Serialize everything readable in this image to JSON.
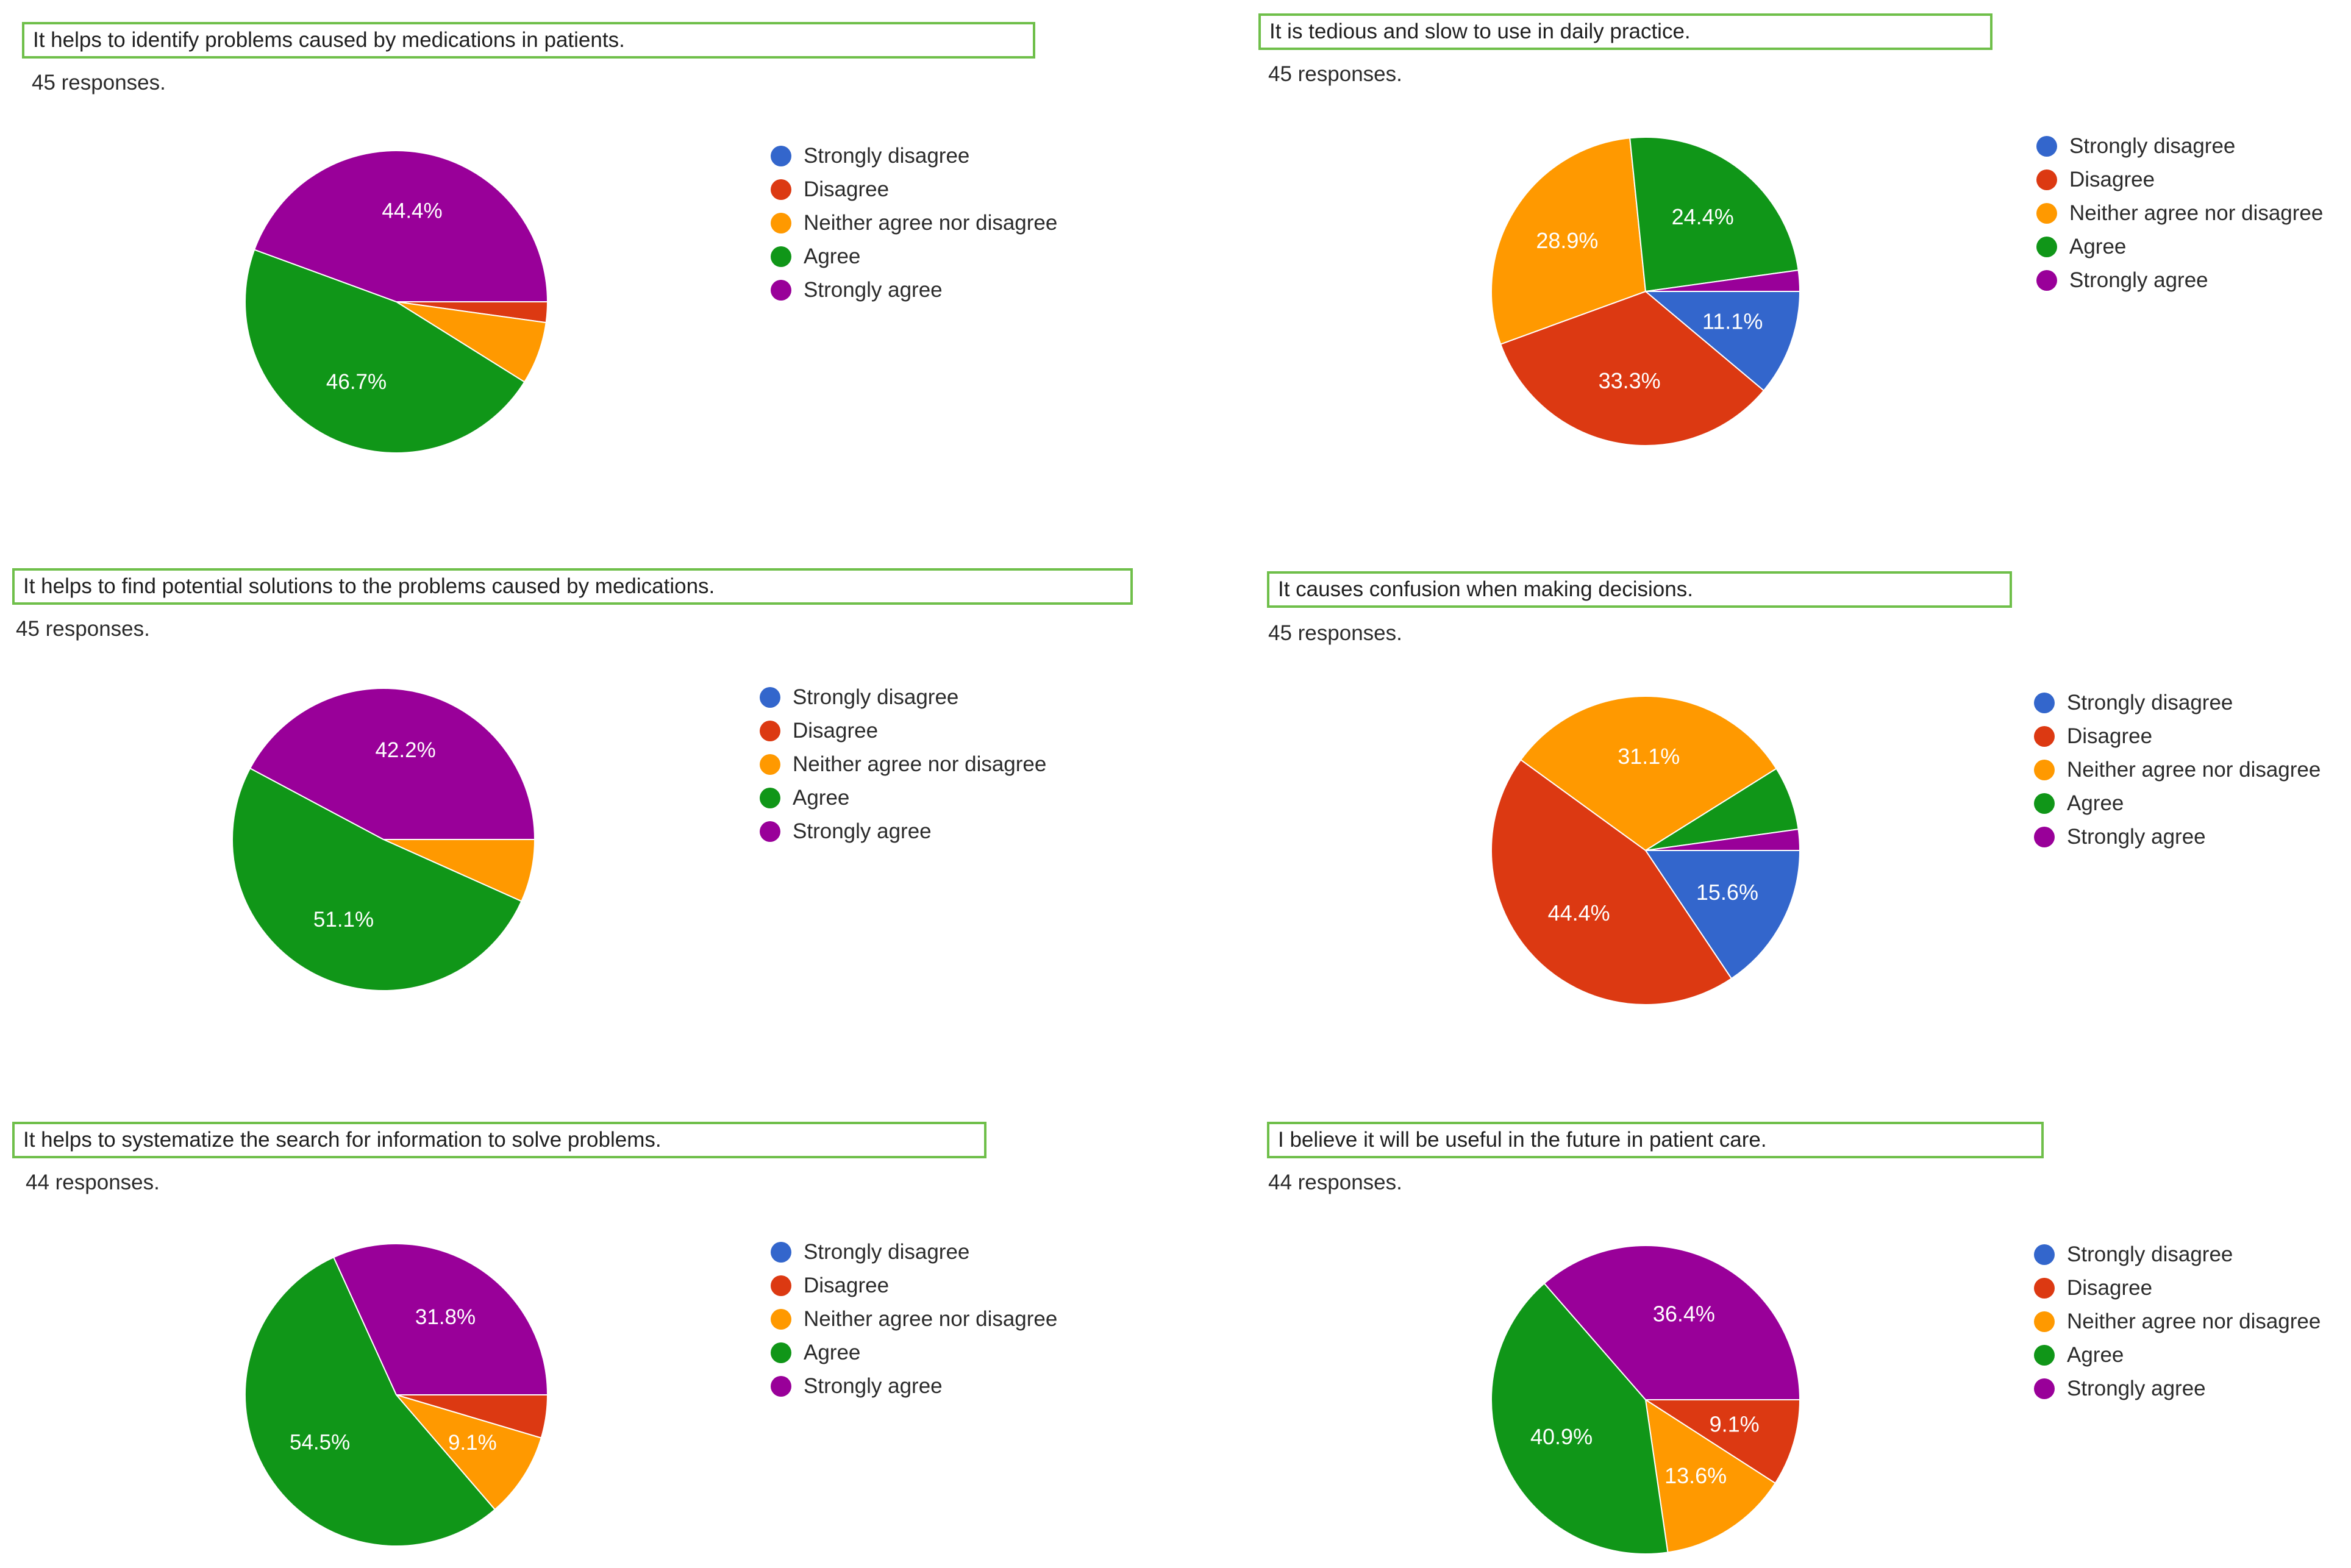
{
  "legend_labels": [
    "Strongly disagree",
    "Disagree",
    "Neither agree nor disagree",
    "Agree",
    "Strongly agree"
  ],
  "colors": [
    "#3366cc",
    "#dc3912",
    "#ff9900",
    "#109618",
    "#990099"
  ],
  "chart_data": [
    {
      "type": "pie",
      "title": "It helps to identify problems caused by medications in patients.",
      "responses": "45 responses.",
      "categories": [
        "Strongly disagree",
        "Disagree",
        "Neither agree nor disagree",
        "Agree",
        "Strongly agree"
      ],
      "values": [
        0,
        2.2,
        6.7,
        46.7,
        44.4
      ],
      "labels": [
        "",
        "",
        "",
        "46.7%",
        "44.4%"
      ]
    },
    {
      "type": "pie",
      "title": "It is tedious and slow to use in daily practice.",
      "responses": "45 responses.",
      "categories": [
        "Strongly disagree",
        "Disagree",
        "Neither agree nor disagree",
        "Agree",
        "Strongly agree"
      ],
      "values": [
        11.1,
        33.3,
        28.9,
        24.4,
        2.2
      ],
      "labels": [
        "11.1%",
        "33.3%",
        "28.9%",
        "24.4%",
        ""
      ]
    },
    {
      "type": "pie",
      "title": "It helps to find potential solutions to the problems caused by medications.",
      "responses": "45 responses.",
      "categories": [
        "Strongly disagree",
        "Disagree",
        "Neither agree nor disagree",
        "Agree",
        "Strongly agree"
      ],
      "values": [
        0,
        0,
        6.7,
        51.1,
        42.2
      ],
      "labels": [
        "",
        "",
        "",
        "51.1%",
        "42.2%"
      ]
    },
    {
      "type": "pie",
      "title": "It causes confusion when making decisions.",
      "responses": "45 responses.",
      "categories": [
        "Strongly disagree",
        "Disagree",
        "Neither agree nor disagree",
        "Agree",
        "Strongly agree"
      ],
      "values": [
        15.6,
        44.4,
        31.1,
        6.7,
        2.2
      ],
      "labels": [
        "15.6%",
        "44.4%",
        "31.1%",
        "",
        ""
      ]
    },
    {
      "type": "pie",
      "title": "It helps to systematize the search for information to solve problems.",
      "responses": "44 responses.",
      "categories": [
        "Strongly disagree",
        "Disagree",
        "Neither agree nor disagree",
        "Agree",
        "Strongly agree"
      ],
      "values": [
        0,
        4.6,
        9.1,
        54.5,
        31.8
      ],
      "labels": [
        "",
        "",
        "9.1%",
        "54.5%",
        "31.8%"
      ]
    },
    {
      "type": "pie",
      "title": "I believe it will be useful in the future in patient care.",
      "responses": "44 responses.",
      "categories": [
        "Strongly disagree",
        "Disagree",
        "Neither agree nor disagree",
        "Agree",
        "Strongly agree"
      ],
      "values": [
        0,
        9.1,
        13.6,
        40.9,
        36.4
      ],
      "labels": [
        "",
        "9.1%",
        "13.6%",
        "40.9%",
        "36.4%"
      ]
    }
  ]
}
